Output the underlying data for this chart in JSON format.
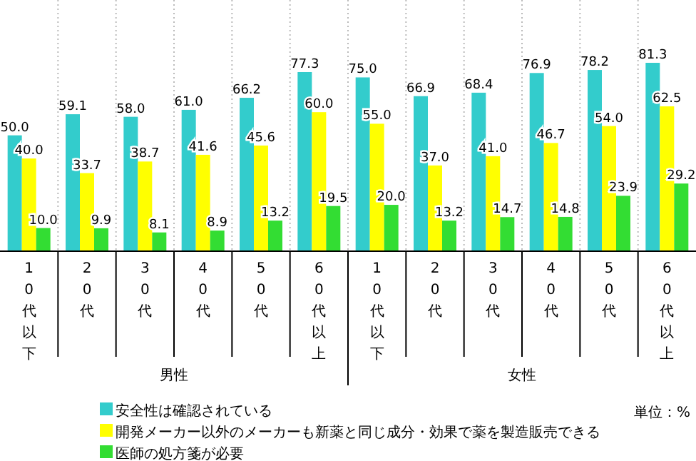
{
  "chart_data": {
    "type": "bar",
    "categories": [
      "10代以下",
      "20代",
      "30代",
      "40代",
      "50代",
      "60代以上",
      "10代以下",
      "20代",
      "30代",
      "40代",
      "50代",
      "60代以上"
    ],
    "series": [
      {
        "name": "安全性は確認されている",
        "color": "#33cccc",
        "values": [
          50.0,
          59.1,
          58.0,
          61.0,
          66.2,
          77.3,
          75.0,
          66.9,
          68.4,
          76.9,
          78.2,
          81.3
        ],
        "value_labels": [
          "50.0",
          "59.1",
          "58.0",
          "61.0",
          "66.2",
          "77.3",
          "75.0",
          "66.9",
          "68.4",
          "76.9",
          "78.2",
          "81.3"
        ]
      },
      {
        "name": "開発メーカー以外のメーカーも新薬と同じ成分・効果で薬を製造販売できる",
        "color": "#ffff00",
        "values": [
          40.0,
          33.7,
          38.7,
          41.6,
          45.6,
          60.0,
          55.0,
          37.0,
          41.0,
          46.7,
          54.0,
          62.5
        ],
        "value_labels": [
          "40.0",
          "33.7",
          "38.7",
          "41.6",
          "45.6",
          "60.0",
          "55.0",
          "37.0",
          "41.0",
          "46.7",
          "54.0",
          "62.5"
        ]
      },
      {
        "name": "医師の処方箋が必要",
        "color": "#33dd33",
        "values": [
          10.0,
          9.9,
          8.1,
          8.9,
          13.2,
          19.5,
          20.0,
          13.2,
          14.7,
          14.8,
          23.9,
          29.2
        ],
        "value_labels": [
          "10.0",
          "9.9",
          "8.1",
          "8.9",
          "13.2",
          "19.5",
          "20.0",
          "13.2",
          "14.7",
          "14.8",
          "23.9",
          "29.2"
        ]
      }
    ],
    "legend": "bottom left",
    "annotations": [
      "男性",
      "女性",
      "単位：%"
    ]
  }
}
